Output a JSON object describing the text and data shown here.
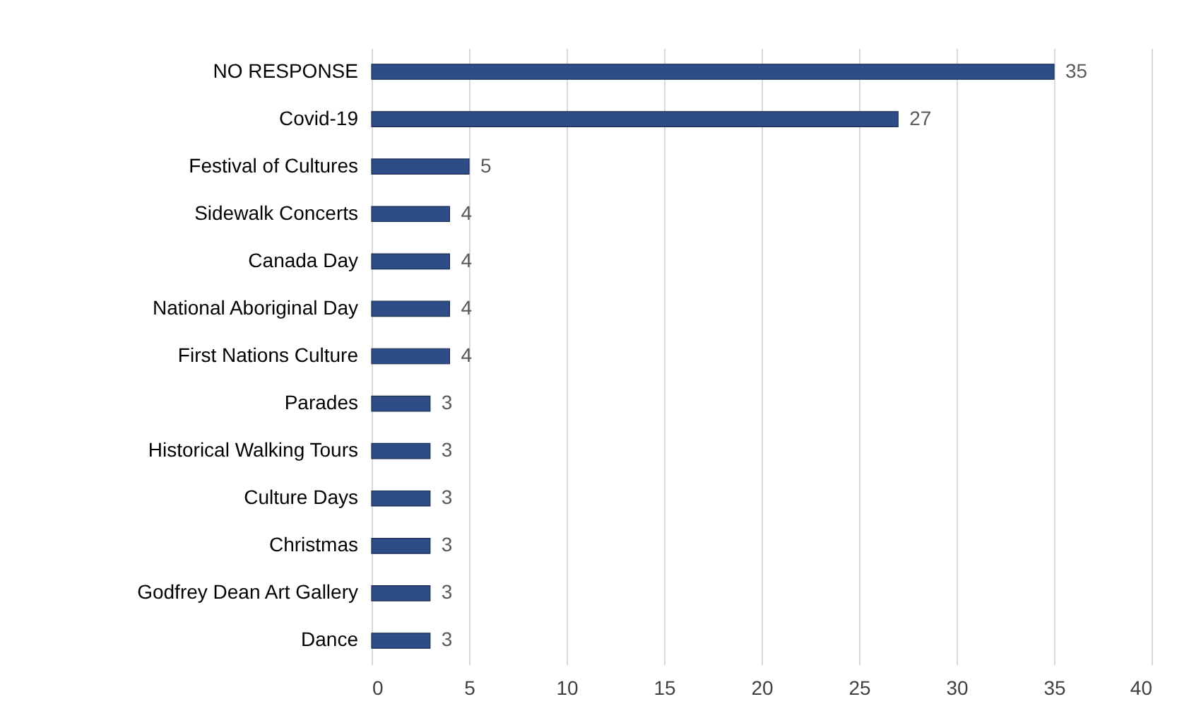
{
  "chart_data": {
    "type": "bar",
    "orientation": "horizontal",
    "categories": [
      "NO RESPONSE",
      "Covid-19",
      "Festival of Cultures",
      "Sidewalk Concerts",
      "Canada Day",
      "National Aboriginal Day",
      "First Nations Culture",
      "Parades",
      "Historical Walking Tours",
      "Culture Days",
      "Christmas",
      "Godfrey Dean Art Gallery",
      "Dance"
    ],
    "values": [
      35,
      27,
      5,
      4,
      4,
      4,
      4,
      3,
      3,
      3,
      3,
      3,
      3
    ],
    "color": "#2e4d86",
    "xlim": [
      0,
      40
    ],
    "xticks": [
      0,
      5,
      10,
      15,
      20,
      25,
      30,
      35,
      40
    ],
    "grid": true,
    "data_labels": true
  }
}
